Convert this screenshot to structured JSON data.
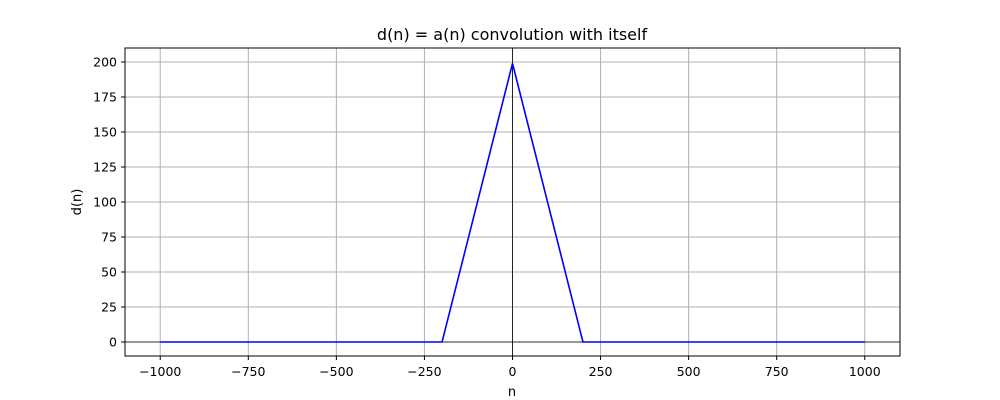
{
  "chart_data": {
    "type": "line",
    "title": "d(n) = a(n) convolution with itself",
    "xlabel": "n",
    "ylabel": "d(n)",
    "xlim": [
      -1100,
      1100
    ],
    "ylim": [
      -10,
      210
    ],
    "xticks": [
      -1000,
      -750,
      -500,
      -250,
      0,
      250,
      500,
      750,
      1000
    ],
    "xtick_labels": [
      "−1000",
      "−750",
      "−500",
      "−250",
      "0",
      "250",
      "500",
      "750",
      "1000"
    ],
    "yticks": [
      0,
      25,
      50,
      75,
      100,
      125,
      150,
      175,
      200
    ],
    "ytick_labels": [
      "0",
      "25",
      "50",
      "75",
      "100",
      "125",
      "150",
      "175",
      "200"
    ],
    "grid": true,
    "reference_lines": {
      "x": 0,
      "y": 0
    },
    "series": [
      {
        "color": "#0000ff",
        "x": [
          -1000,
          -200,
          0,
          200,
          1000
        ],
        "y": [
          0,
          0,
          199,
          0,
          0
        ]
      }
    ]
  }
}
